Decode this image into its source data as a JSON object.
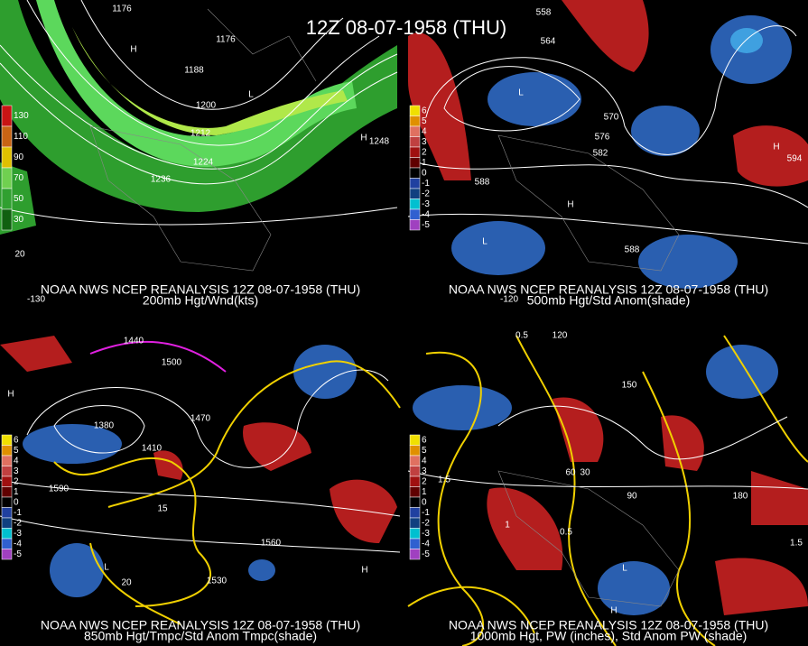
{
  "title": "12Z 08-07-1958 (THU)",
  "panels": [
    {
      "caption": "NOAA NWS NCEP REANALYSIS 12Z 08-07-1958 (THU)",
      "subcaption": "200mb Hgt/Wnd(kts)",
      "legend": [
        "130",
        "110",
        "90",
        "70",
        "50",
        "30"
      ],
      "labels": [
        "1176",
        "1176",
        "1188",
        "1200",
        "1212",
        "1224",
        "1236",
        "1248",
        "H",
        "L",
        "H",
        "20",
        "-130"
      ]
    },
    {
      "caption": "NOAA NWS NCEP REANALYSIS 12Z 08-07-1958 (THU)",
      "subcaption": "500mb Hgt/Std Anom(shade)",
      "legend": [
        "6",
        "5",
        "4",
        "3",
        "2",
        "1",
        "0",
        "-1",
        "-2",
        "-3",
        "-4",
        "-5"
      ],
      "labels": [
        "558",
        "564",
        "570",
        "576",
        "582",
        "588",
        "588",
        "594",
        "L",
        "H",
        "L",
        "H",
        "-120"
      ]
    },
    {
      "caption": "NOAA NWS NCEP REANALYSIS 12Z 08-07-1958 (THU)",
      "subcaption": "850mb Hgt/Tmpc/Std Anom Tmpc(shade)",
      "legend": [
        "6",
        "5",
        "4",
        "3",
        "2",
        "1",
        "0",
        "-1",
        "-2",
        "-3",
        "-4",
        "-5"
      ],
      "labels": [
        "1440",
        "1500",
        "1380",
        "1410",
        "1470",
        "1530",
        "1560",
        "1590",
        "H",
        "L",
        "H",
        "20",
        "15"
      ]
    },
    {
      "caption": "NOAA NWS NCEP REANALYSIS 12Z 08-07-1958 (THU)",
      "subcaption": "1000mb Hgt, PW (inches), Std Anom PW (shade)",
      "legend": [
        "6",
        "5",
        "4",
        "3",
        "2",
        "1",
        "0",
        "-1",
        "-2",
        "-3",
        "-4",
        "-5"
      ],
      "labels": [
        "0.5",
        "120",
        "150",
        "180",
        "1.5",
        "60",
        "30",
        "90",
        "1",
        "H",
        "L",
        "0.5",
        "1.5"
      ]
    }
  ]
}
